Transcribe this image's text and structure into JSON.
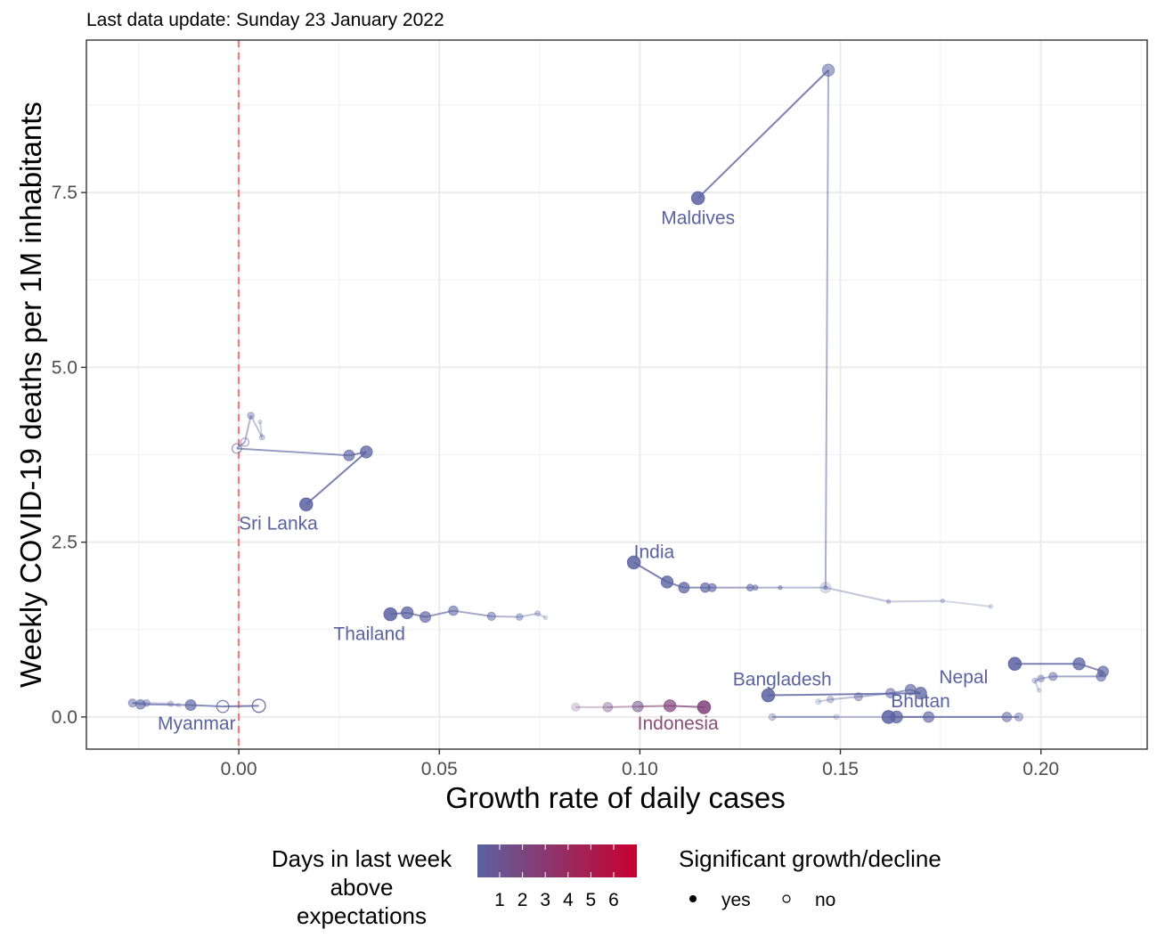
{
  "chart_data": {
    "type": "scatter",
    "subtitle": "Last data update: Sunday 23 January 2022",
    "xlabel": "Growth rate of daily cases",
    "ylabel": "Weekly COVID-19 deaths per 1M inhabitants",
    "xlim": [
      -0.038,
      0.2265
    ],
    "ylim": [
      -0.46,
      9.68
    ],
    "x_ticks": [
      0.0,
      0.05,
      0.1,
      0.15,
      0.2
    ],
    "x_tick_labels": [
      "0.00",
      "0.05",
      "0.10",
      "0.15",
      "0.20"
    ],
    "y_ticks": [
      0.0,
      2.5,
      5.0,
      7.5
    ],
    "y_tick_labels": [
      "0.0",
      "2.5",
      "5.0",
      "7.5"
    ],
    "reference_line": {
      "x": 0,
      "color": "#ff6f6f",
      "style": "dashed"
    },
    "grid": true,
    "legend_position": "bottom",
    "legend_color": {
      "title": "Days in last week\nabove\nexpectations",
      "labels": [
        "1",
        "2",
        "3",
        "4",
        "5",
        "6"
      ],
      "low_color": "#5a62a0",
      "high_color": "#c8002f"
    },
    "legend_shape": {
      "title": "Significant growth/decline",
      "items": [
        {
          "label": "yes",
          "filled": true
        },
        {
          "label": "no",
          "filled": false
        }
      ]
    },
    "series": [
      {
        "name": "Maldives",
        "label": {
          "text": "Maldives",
          "x": 0.1145,
          "y": 7.05,
          "anchor": "middle"
        },
        "color": "#5a62a0",
        "points": [
          {
            "x": 0.1463,
            "y": 1.85,
            "sig": true
          },
          {
            "x": 0.147,
            "y": 9.25,
            "sig": true
          },
          {
            "x": 0.1145,
            "y": 7.42,
            "sig": true
          }
        ]
      },
      {
        "name": "Sri Lanka",
        "label": {
          "text": "Sri Lanka",
          "x": 0.0,
          "y": 2.68,
          "anchor": "start"
        },
        "color": "#5a62a0",
        "points": [
          {
            "x": 0.0053,
            "y": 4.22,
            "sig": true
          },
          {
            "x": 0.0058,
            "y": 4.0,
            "sig": true
          },
          {
            "x": 0.003,
            "y": 4.31,
            "sig": true
          },
          {
            "x": 0.0015,
            "y": 3.93,
            "sig": false
          },
          {
            "x": -0.0005,
            "y": 3.84,
            "sig": false
          },
          {
            "x": 0.0275,
            "y": 3.74,
            "sig": true
          },
          {
            "x": 0.0318,
            "y": 3.79,
            "sig": true
          },
          {
            "x": 0.0168,
            "y": 3.04,
            "sig": true
          }
        ]
      },
      {
        "name": "India",
        "label": {
          "text": "India",
          "x": 0.0985,
          "y": 2.27,
          "anchor": "start"
        },
        "color": "#5a62a0",
        "points": [
          {
            "x": 0.1875,
            "y": 1.58,
            "sig": true
          },
          {
            "x": 0.1755,
            "y": 1.66,
            "sig": true
          },
          {
            "x": 0.162,
            "y": 1.65,
            "sig": true
          },
          {
            "x": 0.1463,
            "y": 1.85,
            "sig": true
          },
          {
            "x": 0.135,
            "y": 1.85,
            "sig": true
          },
          {
            "x": 0.1288,
            "y": 1.85,
            "sig": true
          },
          {
            "x": 0.1275,
            "y": 1.85,
            "sig": true
          },
          {
            "x": 0.118,
            "y": 1.85,
            "sig": true
          },
          {
            "x": 0.1163,
            "y": 1.85,
            "sig": true
          },
          {
            "x": 0.111,
            "y": 1.85,
            "sig": true
          },
          {
            "x": 0.1068,
            "y": 1.93,
            "sig": true
          },
          {
            "x": 0.0985,
            "y": 2.21,
            "sig": true
          }
        ]
      },
      {
        "name": "Thailand",
        "label": {
          "text": "Thailand",
          "x": 0.0415,
          "y": 1.1,
          "anchor": "end"
        },
        "color": "#5a62a0",
        "points": [
          {
            "x": 0.0765,
            "y": 1.42,
            "sig": true
          },
          {
            "x": 0.0745,
            "y": 1.48,
            "sig": true
          },
          {
            "x": 0.07,
            "y": 1.43,
            "sig": true
          },
          {
            "x": 0.063,
            "y": 1.44,
            "sig": true
          },
          {
            "x": 0.0535,
            "y": 1.52,
            "sig": true
          },
          {
            "x": 0.0465,
            "y": 1.43,
            "sig": true
          },
          {
            "x": 0.042,
            "y": 1.49,
            "sig": true
          },
          {
            "x": 0.0378,
            "y": 1.47,
            "sig": true
          }
        ]
      },
      {
        "name": "Myanmar",
        "label": {
          "text": "Myanmar",
          "x": -0.0105,
          "y": -0.18,
          "anchor": "middle"
        },
        "color": "#5a62a0",
        "points": [
          {
            "x": -0.015,
            "y": 0.17,
            "sig": true
          },
          {
            "x": -0.017,
            "y": 0.19,
            "sig": true
          },
          {
            "x": -0.023,
            "y": 0.2,
            "sig": true
          },
          {
            "x": -0.0265,
            "y": 0.2,
            "sig": true
          },
          {
            "x": -0.0245,
            "y": 0.18,
            "sig": true
          },
          {
            "x": -0.012,
            "y": 0.17,
            "sig": true
          },
          {
            "x": -0.004,
            "y": 0.15,
            "sig": false
          },
          {
            "x": 0.005,
            "y": 0.16,
            "sig": false
          }
        ]
      },
      {
        "name": "Indonesia",
        "label": {
          "text": "Indonesia",
          "x": 0.1095,
          "y": -0.18,
          "anchor": "middle"
        },
        "color": "#8a4f7b",
        "points": [
          {
            "x": 0.084,
            "y": 0.14,
            "sig": true,
            "days": 3
          },
          {
            "x": 0.092,
            "y": 0.14,
            "sig": true,
            "days": 3
          },
          {
            "x": 0.0995,
            "y": 0.15,
            "sig": true,
            "days": 3
          },
          {
            "x": 0.1075,
            "y": 0.16,
            "sig": true,
            "days": 4
          },
          {
            "x": 0.116,
            "y": 0.14,
            "sig": true,
            "days": 4
          }
        ]
      },
      {
        "name": "Bangladesh",
        "label": {
          "text": "Bangladesh",
          "x": 0.1355,
          "y": 0.45,
          "anchor": "middle"
        },
        "color": "#5a62a0",
        "points": [
          {
            "x": 0.1445,
            "y": 0.22,
            "sig": true
          },
          {
            "x": 0.1475,
            "y": 0.25,
            "sig": true
          },
          {
            "x": 0.1545,
            "y": 0.29,
            "sig": true
          },
          {
            "x": 0.1625,
            "y": 0.34,
            "sig": true
          },
          {
            "x": 0.1675,
            "y": 0.39,
            "sig": true
          },
          {
            "x": 0.17,
            "y": 0.34,
            "sig": true
          },
          {
            "x": 0.132,
            "y": 0.31,
            "sig": true
          }
        ]
      },
      {
        "name": "Bhutan",
        "label": {
          "text": "Bhutan",
          "x": 0.17,
          "y": 0.14,
          "anchor": "middle"
        },
        "color": "#5a62a0",
        "points": [
          {
            "x": 0.149,
            "y": 0.0,
            "sig": true
          },
          {
            "x": 0.133,
            "y": 0.0,
            "sig": true
          },
          {
            "x": 0.1945,
            "y": 0.0,
            "sig": true
          },
          {
            "x": 0.1915,
            "y": 0.0,
            "sig": true
          },
          {
            "x": 0.172,
            "y": 0.0,
            "sig": true
          },
          {
            "x": 0.164,
            "y": 0.0,
            "sig": true
          },
          {
            "x": 0.162,
            "y": 0.0,
            "sig": true
          }
        ]
      },
      {
        "name": "Nepal",
        "label": {
          "text": "Nepal",
          "x": 0.1868,
          "y": 0.48,
          "anchor": "end"
        },
        "color": "#5a62a0",
        "points": [
          {
            "x": 0.1995,
            "y": 0.38,
            "sig": true
          },
          {
            "x": 0.1985,
            "y": 0.52,
            "sig": true
          },
          {
            "x": 0.2,
            "y": 0.55,
            "sig": true
          },
          {
            "x": 0.203,
            "y": 0.58,
            "sig": true
          },
          {
            "x": 0.215,
            "y": 0.58,
            "sig": true
          },
          {
            "x": 0.2155,
            "y": 0.65,
            "sig": true
          },
          {
            "x": 0.2095,
            "y": 0.76,
            "sig": true
          },
          {
            "x": 0.1935,
            "y": 0.76,
            "sig": true
          }
        ]
      }
    ]
  }
}
